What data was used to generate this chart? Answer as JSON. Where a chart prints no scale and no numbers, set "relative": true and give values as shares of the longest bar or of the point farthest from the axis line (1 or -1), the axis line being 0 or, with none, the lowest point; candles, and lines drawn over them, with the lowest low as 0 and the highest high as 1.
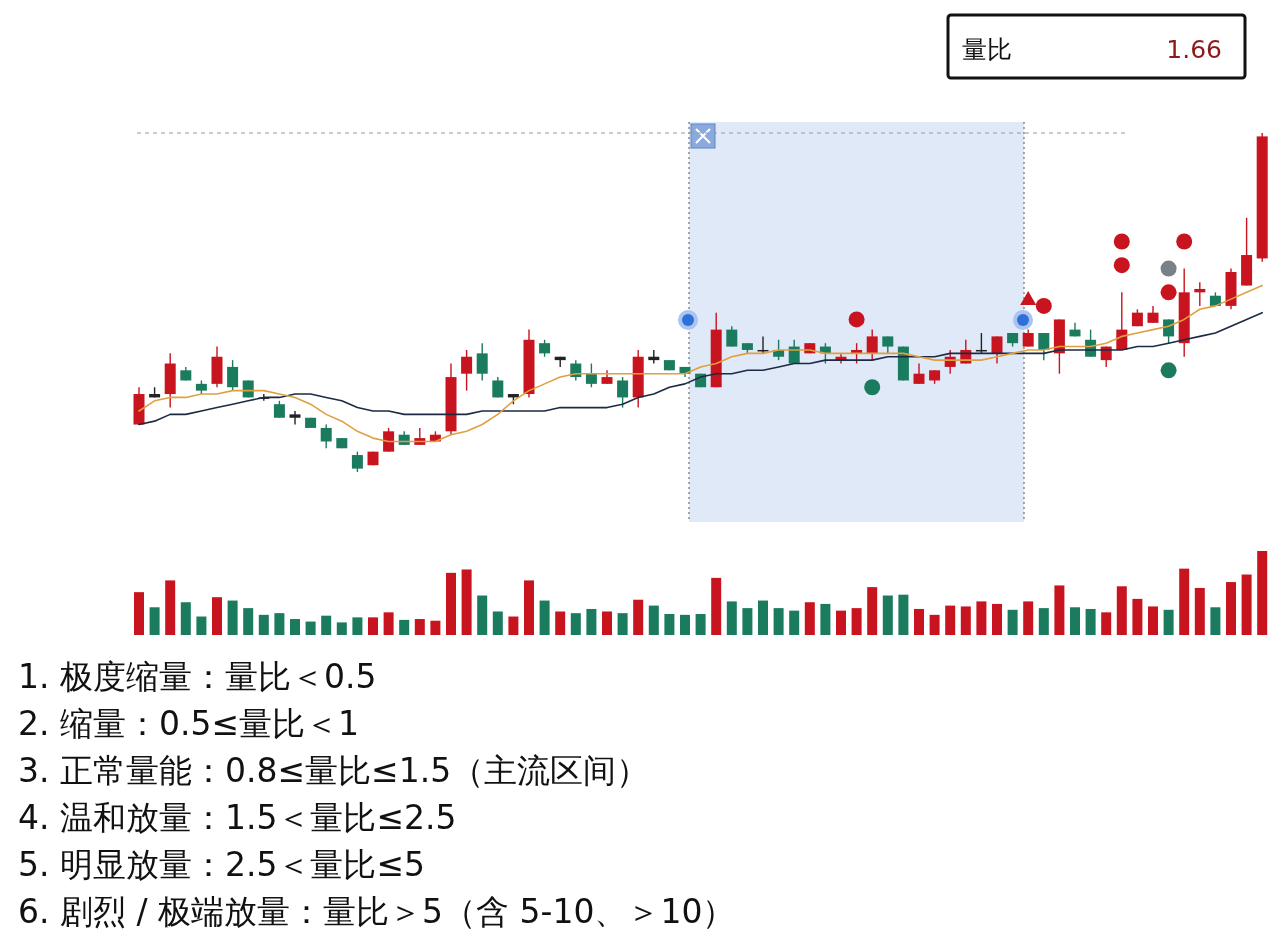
{
  "chart_data": [
    {
      "type": "candlestick",
      "relative": true,
      "categories": [
        null,
        null,
        null,
        null,
        null,
        null,
        null,
        null,
        null,
        null,
        null,
        null,
        null,
        null,
        null,
        null,
        null,
        null,
        null,
        null,
        null,
        null,
        null,
        null,
        null,
        null,
        null,
        null,
        null,
        null,
        null,
        null,
        null,
        null,
        null,
        null,
        null,
        null,
        null,
        null,
        null,
        null,
        null,
        null,
        null,
        null,
        null,
        null,
        null,
        null,
        null,
        null,
        null,
        null,
        null,
        null,
        null,
        null,
        null,
        null,
        null,
        null,
        null,
        null,
        null,
        null,
        null,
        null,
        null,
        null,
        null,
        null,
        null
      ],
      "ohlc": [
        [
          0.14,
          0.25,
          0.14,
          0.23
        ],
        [
          0.22,
          0.25,
          0.22,
          0.23
        ],
        [
          0.23,
          0.35,
          0.19,
          0.32
        ],
        [
          0.3,
          0.31,
          0.27,
          0.27
        ],
        [
          0.26,
          0.27,
          0.23,
          0.24
        ],
        [
          0.26,
          0.37,
          0.25,
          0.34
        ],
        [
          0.31,
          0.33,
          0.24,
          0.25
        ],
        [
          0.27,
          0.27,
          0.22,
          0.22
        ],
        [
          0.22,
          0.23,
          0.21,
          0.22
        ],
        [
          0.2,
          0.21,
          0.16,
          0.16
        ],
        [
          0.17,
          0.18,
          0.14,
          0.16
        ],
        [
          0.16,
          0.16,
          0.13,
          0.13
        ],
        [
          0.13,
          0.14,
          0.07,
          0.09
        ],
        [
          0.1,
          0.1,
          0.07,
          0.07
        ],
        [
          0.05,
          0.06,
          0,
          0.01
        ],
        [
          0.02,
          0.06,
          0.02,
          0.06
        ],
        [
          0.06,
          0.13,
          0.06,
          0.12
        ],
        [
          0.11,
          0.12,
          0.08,
          0.08
        ],
        [
          0.08,
          0.13,
          0.08,
          0.1
        ],
        [
          0.09,
          0.12,
          0.09,
          0.11
        ],
        [
          0.12,
          0.32,
          0.11,
          0.28
        ],
        [
          0.29,
          0.36,
          0.24,
          0.34
        ],
        [
          0.35,
          0.38,
          0.27,
          0.29
        ],
        [
          0.27,
          0.28,
          0.22,
          0.22
        ],
        [
          0.22,
          0.23,
          0.2,
          0.23
        ],
        [
          0.23,
          0.42,
          0.22,
          0.39
        ],
        [
          0.38,
          0.39,
          0.34,
          0.35
        ],
        [
          0.33,
          0.34,
          0.31,
          0.34
        ],
        [
          0.32,
          0.33,
          0.27,
          0.28
        ],
        [
          0.29,
          0.32,
          0.25,
          0.26
        ],
        [
          0.26,
          0.3,
          0.26,
          0.28
        ],
        [
          0.27,
          0.28,
          0.19,
          0.22
        ],
        [
          0.22,
          0.36,
          0.19,
          0.34
        ],
        [
          0.33,
          0.36,
          0.32,
          0.34
        ],
        [
          0.33,
          0.33,
          0.3,
          0.3
        ],
        [
          0.31,
          0.31,
          0.28,
          0.29
        ],
        [
          0.29,
          0.29,
          0.25,
          0.25
        ],
        [
          0.25,
          0.47,
          0.25,
          0.42
        ],
        [
          0.42,
          0.43,
          0.37,
          0.37
        ],
        [
          0.38,
          0.38,
          0.35,
          0.36
        ],
        [
          0.36,
          0.4,
          0.35,
          0.36
        ],
        [
          0.36,
          0.39,
          0.33,
          0.34
        ],
        [
          0.37,
          0.39,
          0.32,
          0.32
        ],
        [
          0.35,
          0.38,
          0.35,
          0.38
        ],
        [
          0.37,
          0.38,
          0.32,
          0.35
        ],
        [
          0.33,
          0.35,
          0.32,
          0.34
        ],
        [
          0.35,
          0.38,
          0.32,
          0.36
        ],
        [
          0.35,
          0.42,
          0.33,
          0.4
        ],
        [
          0.4,
          0.4,
          0.35,
          0.37
        ],
        [
          0.37,
          0.37,
          0.27,
          0.27
        ],
        [
          0.26,
          0.32,
          0.26,
          0.29
        ],
        [
          0.27,
          0.3,
          0.26,
          0.3
        ],
        [
          0.31,
          0.36,
          0.29,
          0.34
        ],
        [
          0.32,
          0.39,
          0.32,
          0.36
        ],
        [
          0.36,
          0.41,
          0.35,
          0.36
        ],
        [
          0.35,
          0.4,
          0.32,
          0.4
        ],
        [
          0.41,
          0.41,
          0.37,
          0.38
        ],
        [
          0.37,
          0.42,
          0.37,
          0.41
        ],
        [
          0.41,
          0.41,
          0.33,
          0.36
        ],
        [
          0.35,
          0.45,
          0.29,
          0.45
        ],
        [
          0.42,
          0.44,
          0.4,
          0.4
        ],
        [
          0.39,
          0.42,
          0.34,
          0.34
        ],
        [
          0.33,
          0.37,
          0.31,
          0.37
        ],
        [
          0.36,
          0.53,
          0.36,
          0.42
        ],
        [
          0.43,
          0.48,
          0.43,
          0.47
        ],
        [
          0.44,
          0.49,
          0.44,
          0.47
        ],
        [
          0.45,
          0.45,
          0.38,
          0.4
        ],
        [
          0.38,
          0.6,
          0.34,
          0.53
        ],
        [
          0.53,
          0.56,
          0.49,
          0.54
        ],
        [
          0.52,
          0.53,
          0.49,
          0.49
        ],
        [
          0.49,
          0.6,
          0.48,
          0.59
        ],
        [
          0.55,
          0.75,
          0.55,
          0.64
        ],
        [
          0.63,
          1,
          0.62,
          0.99
        ]
      ],
      "colors": [
        "#c8141e",
        "#222222",
        "#c8141e",
        "#1b7b5f",
        "#1b7b5f",
        "#c8141e",
        "#1b7b5f",
        "#1b7b5f",
        "#222222",
        "#1b7b5f",
        "#222222",
        "#1b7b5f",
        "#1b7b5f",
        "#1b7b5f",
        "#1b7b5f",
        "#c8141e",
        "#c8141e",
        "#1b7b5f",
        "#c8141e",
        "#c8141e",
        "#c8141e",
        "#c8141e",
        "#1b7b5f",
        "#1b7b5f",
        "#222222",
        "#c8141e",
        "#1b7b5f",
        "#222222",
        "#1b7b5f",
        "#1b7b5f",
        "#c8141e",
        "#1b7b5f",
        "#c8141e",
        "#222222",
        "#1b7b5f",
        "#1b7b5f",
        "#1b7b5f",
        "#c8141e",
        "#1b7b5f",
        "#1b7b5f",
        "#222222",
        "#1b7b5f",
        "#1b7b5f",
        "#c8141e",
        "#1b7b5f",
        "#c8141e",
        "#c8141e",
        "#c8141e",
        "#1b7b5f",
        "#1b7b5f",
        "#c8141e",
        "#c8141e",
        "#c8141e",
        "#c8141e",
        "#222222",
        "#c8141e",
        "#1b7b5f",
        "#c8141e",
        "#1b7b5f",
        "#c8141e",
        "#1b7b5f",
        "#1b7b5f",
        "#c8141e",
        "#c8141e",
        "#c8141e",
        "#c8141e",
        "#1b7b5f",
        "#c8141e",
        "#c8141e",
        "#1b7b5f",
        "#c8141e",
        "#c8141e",
        "#c8141e"
      ],
      "series": [
        {
          "type": "line",
          "color": "#1c2a44",
          "values": [
            0.14,
            0.15,
            0.17,
            0.17,
            0.18,
            0.19,
            0.2,
            0.21,
            0.22,
            0.22,
            0.23,
            0.23,
            0.22,
            0.21,
            0.19,
            0.18,
            0.18,
            0.17,
            0.17,
            0.17,
            0.17,
            0.17,
            0.18,
            0.18,
            0.18,
            0.18,
            0.18,
            0.19,
            0.19,
            0.19,
            0.19,
            0.2,
            0.22,
            0.23,
            0.25,
            0.26,
            0.28,
            0.29,
            0.29,
            0.3,
            0.3,
            0.31,
            0.32,
            0.32,
            0.33,
            0.33,
            0.33,
            0.33,
            0.34,
            0.34,
            0.34,
            0.34,
            0.35,
            0.35,
            0.35,
            0.35,
            0.35,
            0.35,
            0.35,
            0.36,
            0.36,
            0.36,
            0.36,
            0.36,
            0.37,
            0.37,
            0.38,
            0.39,
            0.4,
            0.41,
            0.43,
            0.45,
            0.47
          ]
        },
        {
          "type": "line",
          "color": "#e0a040",
          "values": [
            0.18,
            0.21,
            0.22,
            0.22,
            0.23,
            0.23,
            0.24,
            0.24,
            0.24,
            0.23,
            0.22,
            0.2,
            0.17,
            0.15,
            0.12,
            0.1,
            0.09,
            0.09,
            0.09,
            0.09,
            0.11,
            0.12,
            0.14,
            0.17,
            0.21,
            0.24,
            0.26,
            0.28,
            0.29,
            0.29,
            0.29,
            0.29,
            0.29,
            0.29,
            0.29,
            0.29,
            0.31,
            0.32,
            0.34,
            0.35,
            0.35,
            0.36,
            0.36,
            0.36,
            0.35,
            0.35,
            0.35,
            0.35,
            0.35,
            0.35,
            0.34,
            0.33,
            0.33,
            0.33,
            0.33,
            0.34,
            0.35,
            0.36,
            0.36,
            0.37,
            0.37,
            0.37,
            0.38,
            0.4,
            0.41,
            0.42,
            0.43,
            0.45,
            0.48,
            0.49,
            0.51,
            0.53,
            0.55
          ]
        },
        {
          "type": "scatter",
          "color": "#c8141e",
          "marker": "circle",
          "values": [
            null,
            null,
            null,
            null,
            null,
            null,
            null,
            null,
            null,
            null,
            null,
            null,
            null,
            null,
            null,
            null,
            null,
            null,
            null,
            null,
            null,
            null,
            null,
            null,
            null,
            null,
            null,
            null,
            null,
            null,
            null,
            null,
            null,
            null,
            null,
            null,
            null,
            null,
            null,
            null,
            null,
            null,
            null,
            null,
            null,
            null,
            0.45,
            null,
            null,
            null,
            null,
            null,
            null,
            null,
            null,
            null,
            null,
            null,
            0.49,
            null,
            null,
            null,
            null,
            0.61,
            null,
            null,
            0.53,
            0.68,
            null,
            null,
            null,
            null,
            null
          ]
        },
        {
          "type": "scatter",
          "color": "#c8141e",
          "marker": "circle",
          "values": [
            null,
            null,
            null,
            null,
            null,
            null,
            null,
            null,
            null,
            null,
            null,
            null,
            null,
            null,
            null,
            null,
            null,
            null,
            null,
            null,
            null,
            null,
            null,
            null,
            null,
            null,
            null,
            null,
            null,
            null,
            null,
            null,
            null,
            null,
            null,
            null,
            null,
            null,
            null,
            null,
            null,
            null,
            null,
            null,
            null,
            null,
            null,
            null,
            null,
            null,
            null,
            null,
            null,
            null,
            null,
            null,
            null,
            null,
            null,
            null,
            null,
            null,
            null,
            0.68,
            null,
            null,
            null,
            null,
            null,
            null,
            null,
            null,
            null
          ]
        },
        {
          "type": "scatter",
          "color": "#1b7b5f",
          "marker": "circle",
          "values": [
            null,
            null,
            null,
            null,
            null,
            null,
            null,
            null,
            null,
            null,
            null,
            null,
            null,
            null,
            null,
            null,
            null,
            null,
            null,
            null,
            null,
            null,
            null,
            null,
            null,
            null,
            null,
            null,
            null,
            null,
            null,
            null,
            null,
            null,
            null,
            null,
            null,
            null,
            null,
            null,
            null,
            null,
            null,
            null,
            null,
            null,
            null,
            0.25,
            null,
            null,
            null,
            null,
            null,
            null,
            null,
            null,
            null,
            null,
            null,
            null,
            null,
            null,
            null,
            null,
            null,
            null,
            0.3,
            null,
            null,
            null,
            null,
            null,
            null
          ]
        },
        {
          "type": "scatter",
          "color": "#7a8088",
          "marker": "circle",
          "values": [
            null,
            null,
            null,
            null,
            null,
            null,
            null,
            null,
            null,
            null,
            null,
            null,
            null,
            null,
            null,
            null,
            null,
            null,
            null,
            null,
            null,
            null,
            null,
            null,
            null,
            null,
            null,
            null,
            null,
            null,
            null,
            null,
            null,
            null,
            null,
            null,
            null,
            null,
            null,
            null,
            null,
            null,
            null,
            null,
            null,
            null,
            null,
            null,
            null,
            null,
            null,
            null,
            null,
            null,
            null,
            null,
            null,
            null,
            null,
            null,
            null,
            null,
            null,
            null,
            null,
            null,
            0.6,
            null,
            null,
            null,
            null,
            null,
            null
          ]
        },
        {
          "type": "scatter",
          "color": "#c8141e",
          "marker": "triangle",
          "values": [
            null,
            null,
            null,
            null,
            null,
            null,
            null,
            null,
            null,
            null,
            null,
            null,
            null,
            null,
            null,
            null,
            null,
            null,
            null,
            null,
            null,
            null,
            null,
            null,
            null,
            null,
            null,
            null,
            null,
            null,
            null,
            null,
            null,
            null,
            null,
            null,
            null,
            null,
            null,
            null,
            null,
            null,
            null,
            null,
            null,
            null,
            null,
            null,
            null,
            null,
            null,
            null,
            null,
            null,
            null,
            null,
            null,
            0.51,
            null,
            null,
            null,
            null,
            null,
            null,
            null,
            null,
            null,
            null,
            null,
            null,
            null,
            null,
            null
          ]
        }
      ],
      "ref_lines": [
        {
          "axis": "y",
          "value": 1,
          "color": "#999999",
          "line_style": "dashed"
        }
      ]
    },
    {
      "type": "bar",
      "relative": true,
      "categories": [
        null,
        null,
        null,
        null,
        null,
        null,
        null,
        null,
        null,
        null,
        null,
        null,
        null,
        null,
        null,
        null,
        null,
        null,
        null,
        null,
        null,
        null,
        null,
        null,
        null,
        null,
        null,
        null,
        null,
        null,
        null,
        null,
        null,
        null,
        null,
        null,
        null,
        null,
        null,
        null,
        null,
        null,
        null,
        null,
        null,
        null,
        null,
        null,
        null,
        null,
        null,
        null,
        null,
        null,
        null,
        null,
        null,
        null,
        null,
        null,
        null,
        null,
        null,
        null,
        null,
        null,
        null,
        null,
        null,
        null,
        null,
        null,
        null
      ],
      "values": [
        0.51,
        0.33,
        0.65,
        0.39,
        0.22,
        0.45,
        0.41,
        0.32,
        0.24,
        0.26,
        0.19,
        0.16,
        0.23,
        0.15,
        0.21,
        0.21,
        0.27,
        0.18,
        0.19,
        0.17,
        0.74,
        0.78,
        0.47,
        0.28,
        0.22,
        0.65,
        0.41,
        0.28,
        0.26,
        0.31,
        0.28,
        0.26,
        0.42,
        0.35,
        0.25,
        0.24,
        0.25,
        0.68,
        0.4,
        0.32,
        0.41,
        0.32,
        0.29,
        0.39,
        0.37,
        0.29,
        0.32,
        0.57,
        0.47,
        0.48,
        0.31,
        0.24,
        0.35,
        0.34,
        0.4,
        0.37,
        0.3,
        0.4,
        0.32,
        0.59,
        0.33,
        0.31,
        0.27,
        0.58,
        0.43,
        0.34,
        0.3,
        0.79,
        0.56,
        0.33,
        0.63,
        0.72,
        1
      ],
      "colors": [
        "#c8141e",
        "#1b7b5f",
        "#c8141e",
        "#1b7b5f",
        "#1b7b5f",
        "#c8141e",
        "#1b7b5f",
        "#1b7b5f",
        "#1b7b5f",
        "#1b7b5f",
        "#1b7b5f",
        "#1b7b5f",
        "#1b7b5f",
        "#1b7b5f",
        "#1b7b5f",
        "#c8141e",
        "#c8141e",
        "#1b7b5f",
        "#c8141e",
        "#c8141e",
        "#c8141e",
        "#c8141e",
        "#1b7b5f",
        "#1b7b5f",
        "#c8141e",
        "#c8141e",
        "#1b7b5f",
        "#c8141e",
        "#1b7b5f",
        "#1b7b5f",
        "#c8141e",
        "#1b7b5f",
        "#c8141e",
        "#1b7b5f",
        "#1b7b5f",
        "#1b7b5f",
        "#1b7b5f",
        "#c8141e",
        "#1b7b5f",
        "#1b7b5f",
        "#1b7b5f",
        "#1b7b5f",
        "#1b7b5f",
        "#c8141e",
        "#1b7b5f",
        "#c8141e",
        "#c8141e",
        "#c8141e",
        "#1b7b5f",
        "#1b7b5f",
        "#c8141e",
        "#c8141e",
        "#c8141e",
        "#c8141e",
        "#c8141e",
        "#c8141e",
        "#1b7b5f",
        "#c8141e",
        "#1b7b5f",
        "#c8141e",
        "#1b7b5f",
        "#1b7b5f",
        "#c8141e",
        "#c8141e",
        "#c8141e",
        "#c8141e",
        "#1b7b5f",
        "#c8141e",
        "#c8141e",
        "#1b7b5f",
        "#c8141e",
        "#c8141e",
        "#c8141e"
      ],
      "annotations": [
        "1. 极度缩量：量比＜0.5",
        "2. 缩量：0.5≤量比＜1",
        "3. 正常量能：0.8≤量比≤1.5（主流区间）",
        "4. 温和放量：1.5＜量比≤2.5",
        "5. 明显放量：2.5＜量比≤5",
        "6. 剧烈 / 极端放量：量比＞5（含 5-10、＞10）"
      ]
    },
    {
      "type": "other",
      "annotations": [
        "量比",
        "1.66"
      ]
    }
  ]
}
